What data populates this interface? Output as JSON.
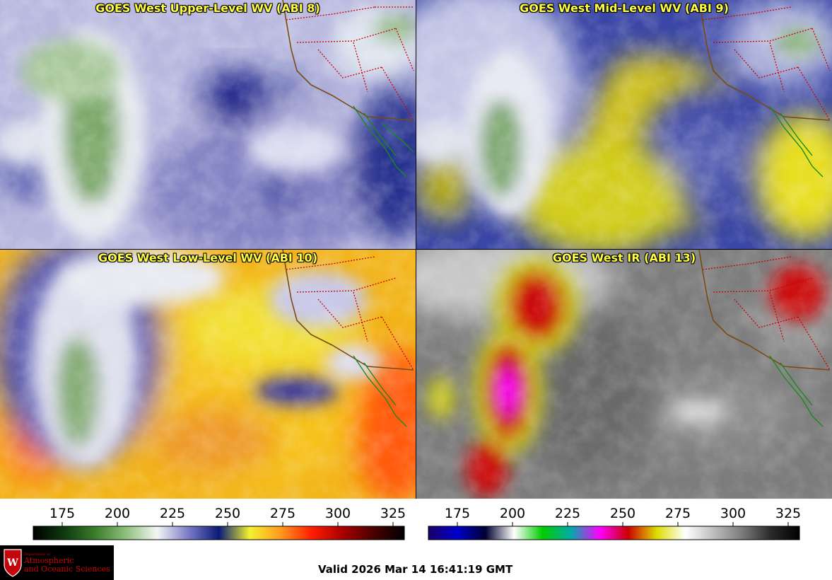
{
  "panels": {
    "upper": {
      "title": "GOES West Upper-Level WV (ABI 8)"
    },
    "mid": {
      "title": "GOES West Mid-Level WV (ABI 9)"
    },
    "low": {
      "title": "GOES West Low-Level WV (ABI 10)"
    },
    "ir": {
      "title": "GOES West IR (ABI 13)"
    }
  },
  "colorbars": {
    "wv": {
      "ticks": [
        "175",
        "200",
        "225",
        "250",
        "275",
        "300",
        "325"
      ],
      "colors": [
        "#000000",
        "#0e3a0e",
        "#3a7d2a",
        "#8ec07c",
        "#f4f6f4",
        "#7d7dc8",
        "#0a1a78",
        "#f2f230",
        "#ff9a1e",
        "#ff1e00",
        "#aa0000",
        "#4a0000",
        "#000000"
      ]
    },
    "ir": {
      "ticks": [
        "175",
        "200",
        "225",
        "250",
        "275",
        "300",
        "325"
      ],
      "colors": [
        "#1a0066",
        "#0000cc",
        "#000033",
        "#ffffff",
        "#00cc00",
        "#00aaaa",
        "#ff00ff",
        "#cc0000",
        "#dddd00",
        "#ffffff",
        "#bdbdbd",
        "#7a7a7a",
        "#2a2a2a",
        "#000000"
      ]
    }
  },
  "logo": {
    "department": "Department of",
    "line1": "Atmospheric",
    "line2": "and Oceanic Sciences"
  },
  "footer": {
    "valid": "Valid 2026 Mar 14 16:41:19 GMT"
  }
}
